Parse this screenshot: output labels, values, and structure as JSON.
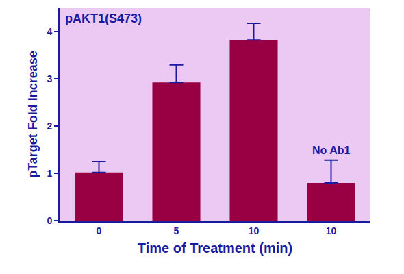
{
  "chart_data": {
    "type": "bar",
    "title": "pAKT1(S473)",
    "x_label": "Time of Treatment (min)",
    "y_label": "pTarget Fold Increase",
    "categories": [
      "0",
      "5",
      "10",
      "10"
    ],
    "values": [
      1.02,
      2.93,
      3.83,
      0.8
    ],
    "errors": [
      0.23,
      0.37,
      0.35,
      0.48
    ],
    "color": "#990044",
    "ylim": [
      0,
      4.5
    ],
    "yticks": [
      0,
      1,
      2,
      3,
      4
    ],
    "grid": false,
    "annotations": [
      {
        "text": "No Ab1",
        "category_index": 3
      }
    ]
  }
}
